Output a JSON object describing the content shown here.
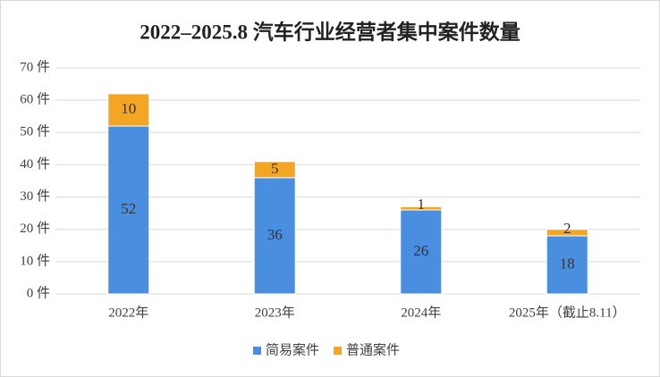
{
  "chart_data": {
    "type": "stacked_bar",
    "title": "2022–2025.8 汽车行业经营者集中案件数量",
    "categories": [
      "2022年",
      "2023年",
      "2024年",
      "2025年（截止8.11）"
    ],
    "series": [
      {
        "name": "简易案件",
        "color": "#4a8ee0",
        "values": [
          52,
          36,
          26,
          18
        ]
      },
      {
        "name": "普通案件",
        "color": "#f3a623",
        "values": [
          10,
          5,
          1,
          2
        ]
      }
    ],
    "ylim": [
      0,
      70
    ],
    "yticks": [
      {
        "value": 0,
        "label": "0 件"
      },
      {
        "value": 10,
        "label": "10 件"
      },
      {
        "value": 20,
        "label": "20 件"
      },
      {
        "value": 30,
        "label": "30 件"
      },
      {
        "value": 40,
        "label": "40 件"
      },
      {
        "value": 50,
        "label": "50 件"
      },
      {
        "value": 60,
        "label": "60 件"
      },
      {
        "value": 70,
        "label": "70 件"
      }
    ],
    "grid": true,
    "legend": "bottom"
  }
}
